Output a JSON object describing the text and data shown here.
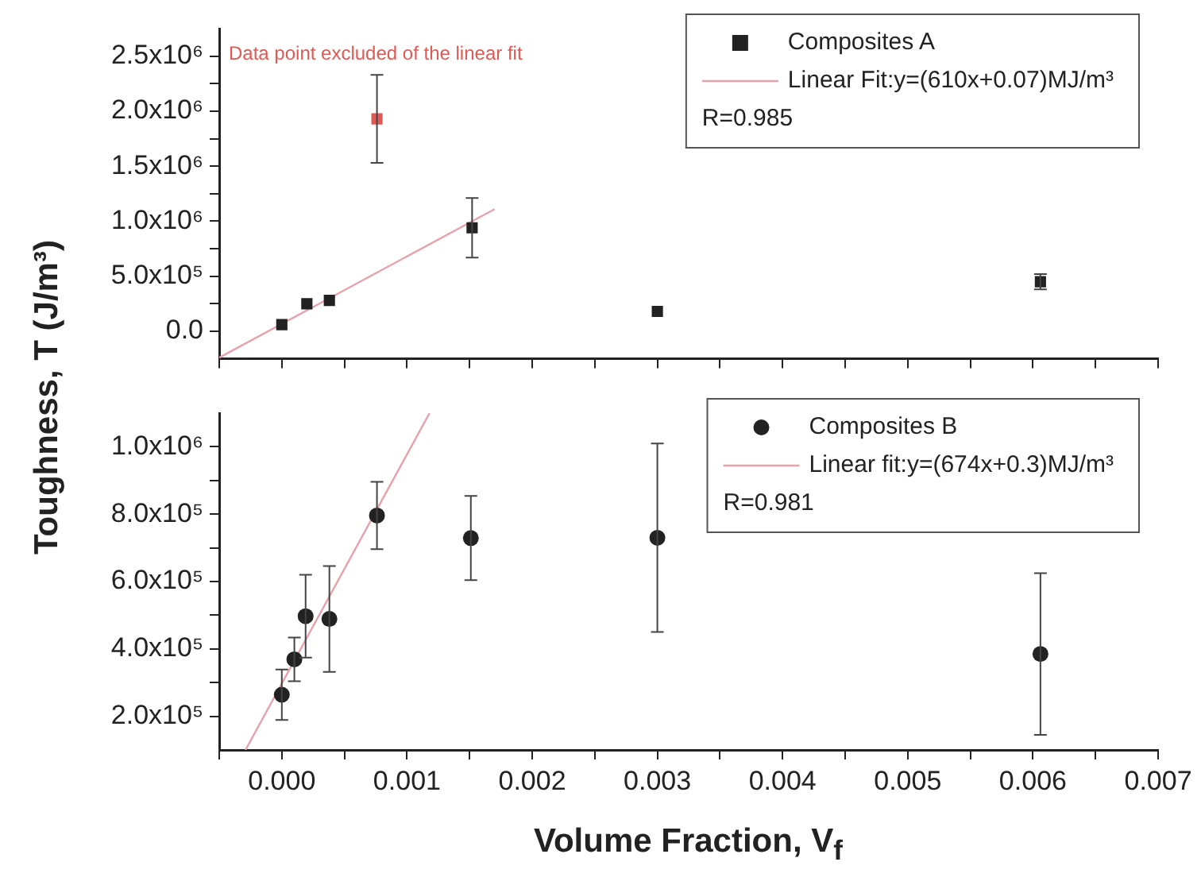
{
  "chart_data": [
    {
      "type": "scatter",
      "ylabel": "Toughness, T (J/m³)",
      "xlim": [
        -0.0005,
        0.007
      ],
      "ylim": [
        -250000,
        2750000
      ],
      "xticks": [
        {
          "value": -0.0005,
          "label": null
        },
        {
          "value": 0,
          "label": null
        },
        {
          "value": 0.0005,
          "label": null
        },
        {
          "value": 0.001,
          "label": null
        },
        {
          "value": 0.0015,
          "label": null
        },
        {
          "value": 0.002,
          "label": null
        },
        {
          "value": 0.0025,
          "label": null
        },
        {
          "value": 0.003,
          "label": null
        },
        {
          "value": 0.0035,
          "label": null
        },
        {
          "value": 0.004,
          "label": null
        },
        {
          "value": 0.0045,
          "label": null
        },
        {
          "value": 0.005,
          "label": null
        },
        {
          "value": 0.0055,
          "label": null
        },
        {
          "value": 0.006,
          "label": null
        },
        {
          "value": 0.0065,
          "label": null
        },
        {
          "value": 0.007,
          "label": null
        }
      ],
      "yticks": [
        {
          "value": 0,
          "label": "0.0"
        },
        {
          "value": 250000,
          "label": null
        },
        {
          "value": 500000,
          "label": "5.0x10⁵"
        },
        {
          "value": 750000,
          "label": null
        },
        {
          "value": 1000000,
          "label": "1.0x10⁶"
        },
        {
          "value": 1250000,
          "label": null
        },
        {
          "value": 1500000,
          "label": "1.5x10⁶"
        },
        {
          "value": 1750000,
          "label": null
        },
        {
          "value": 2000000,
          "label": "2.0x10⁶"
        },
        {
          "value": 2250000,
          "label": null
        },
        {
          "value": 2500000,
          "label": "2.5x10⁶"
        }
      ],
      "tick_labels": "y",
      "grid": false,
      "legend": "top right",
      "annotations": [
        "Data point excluded of the linear fit",
        "R=0.985"
      ],
      "series": [
        {
          "name": "Composites A",
          "color": "#222222",
          "marker": "square",
          "x": [
            0,
            0.0002,
            0.00038,
            0.00152,
            0.003,
            0.00606
          ],
          "values": [
            60000,
            250000,
            280000,
            940000,
            180000,
            450000
          ],
          "errors": [
            null,
            null,
            null,
            270000,
            null,
            70000
          ]
        },
        {
          "color": "#e05a55",
          "marker": "square",
          "x": [
            0.00076
          ],
          "values": [
            1930000
          ],
          "errors": [
            400000
          ]
        },
        {
          "name": "Linear Fit:y=(610x+0.07)MJ/m³",
          "type": "line",
          "color": "#e8a0aa",
          "marker": "none",
          "x": [
            -0.0005,
            0.0017
          ],
          "values": [
            -240000,
            1110000
          ]
        }
      ]
    },
    {
      "type": "scatter",
      "xlabel": "Volume Fraction, V$_{f}$",
      "xlim": [
        -0.0005,
        0.007
      ],
      "ylim": [
        100000,
        1100000
      ],
      "xticks": [
        {
          "value": -0.0005,
          "label": null
        },
        {
          "value": 0,
          "label": "0.000"
        },
        {
          "value": 0.0005,
          "label": null
        },
        {
          "value": 0.001,
          "label": "0.001"
        },
        {
          "value": 0.0015,
          "label": null
        },
        {
          "value": 0.002,
          "label": "0.002"
        },
        {
          "value": 0.0025,
          "label": null
        },
        {
          "value": 0.003,
          "label": "0.003"
        },
        {
          "value": 0.0035,
          "label": null
        },
        {
          "value": 0.004,
          "label": "0.004"
        },
        {
          "value": 0.0045,
          "label": null
        },
        {
          "value": 0.005,
          "label": "0.005"
        },
        {
          "value": 0.0055,
          "label": null
        },
        {
          "value": 0.006,
          "label": "0.006"
        },
        {
          "value": 0.0065,
          "label": null
        },
        {
          "value": 0.007,
          "label": "0.007"
        }
      ],
      "yticks": [
        {
          "value": 200000,
          "label": "2.0x10⁵"
        },
        {
          "value": 300000,
          "label": null
        },
        {
          "value": 400000,
          "label": "4.0x10⁵"
        },
        {
          "value": 500000,
          "label": null
        },
        {
          "value": 600000,
          "label": "6.0x10⁵"
        },
        {
          "value": 700000,
          "label": null
        },
        {
          "value": 800000,
          "label": "8.0x10⁵"
        },
        {
          "value": 900000,
          "label": null
        },
        {
          "value": 1000000,
          "label": "1.0x10⁶"
        }
      ],
      "grid": false,
      "legend": "top right",
      "annotations": [
        "R=0.981"
      ],
      "series": [
        {
          "name": "Composites B",
          "color": "#222222",
          "marker": "circle",
          "x": [
            0,
            0.0001,
            0.00019,
            0.00038,
            0.00076,
            0.00151,
            0.003,
            0.00606
          ],
          "values": [
            264000,
            369000,
            497000,
            489000,
            796000,
            729000,
            730000,
            385000
          ],
          "errors": [
            75000,
            65000,
            123000,
            157000,
            100000,
            125000,
            280000,
            240000
          ]
        },
        {
          "name": "Linear fit:y=(674x+0.3)MJ/m³",
          "type": "line",
          "color": "#e8a0aa",
          "marker": "none",
          "x": [
            -0.00029,
            0.00118
          ],
          "values": [
            100000,
            1100000
          ]
        }
      ]
    }
  ]
}
